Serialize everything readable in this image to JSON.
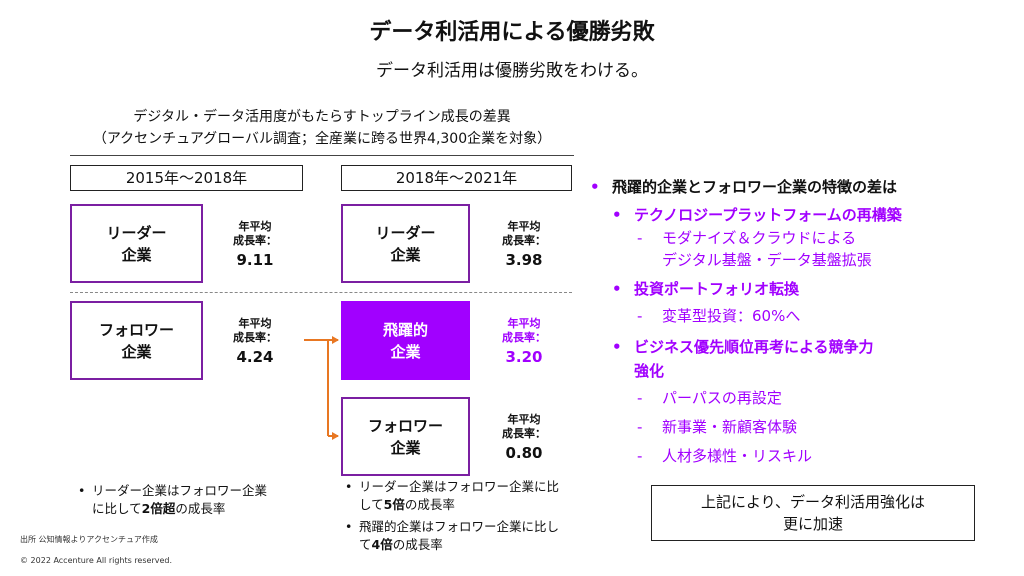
{
  "header": {
    "title": "データ利活用による優勝劣敗",
    "subtitle": "データ利活用は優勝劣敗をわける。"
  },
  "caption": {
    "line1": "デジタル・データ活用度がもたらすトップライン成長の差異",
    "line2": "（アクセンチュアグローバル調査；全産業に跨る世界4,300企業を対象）"
  },
  "periods": {
    "left": "2015年～2018年",
    "right": "2018年～2021年"
  },
  "rate_label": {
    "line1": "年平均",
    "line2": "成長率："
  },
  "boxes": {
    "leader_left": {
      "line1": "リーダー",
      "line2": "企業",
      "rate": "9.11"
    },
    "follower_left": {
      "line1": "フォロワー",
      "line2": "企業",
      "rate": "4.24"
    },
    "leader_right": {
      "line1": "リーダー",
      "line2": "企業",
      "rate": "3.98"
    },
    "leap_right": {
      "line1": "飛躍的",
      "line2": "企業",
      "rate": "3.20"
    },
    "follower_right": {
      "line1": "フォロワー",
      "line2": "企業",
      "rate": "0.80"
    }
  },
  "notes": {
    "left": {
      "pre": "リーダー企業はフォロワー企業に比して",
      "bold": "2倍超",
      "post": "の成長率"
    },
    "right1": {
      "pre": "リーダー企業はフォロワー企業に比して",
      "bold": "5倍",
      "post": "の成長率"
    },
    "right2": {
      "pre": "飛躍的企業はフォロワー企業に比して",
      "bold": "4倍",
      "post": "の成長率"
    }
  },
  "source": "出所 公知情報よりアクセンチュア作成",
  "copyright": "© 2022 Accenture All rights reserved.",
  "right_panel": {
    "heading": "飛躍的企業とフォロワー企業の特徴の差は",
    "items": [
      {
        "label": "テクノロジープラットフォームの再構築",
        "subs": [
          "モダナイズ＆クラウドによる\nデジタル基盤・データ基盤拡張"
        ]
      },
      {
        "label": "投資ポートフォリオ転換",
        "subs": [
          "変革型投資：60%へ"
        ]
      },
      {
        "label": "ビジネス優先順位再考による競争力\n強化",
        "subs": [
          "パーパスの再設定",
          "新事業・新顧客体験",
          "人材多様性・リスキル"
        ]
      }
    ],
    "bullet": "•",
    "dash": "-"
  },
  "conclusion": {
    "line1": "上記により、データ利活用強化は",
    "line2": "更に加速"
  },
  "colors": {
    "accent": "#A100FF",
    "box_border": "#7B1FA2",
    "arrow": "#E87722"
  }
}
